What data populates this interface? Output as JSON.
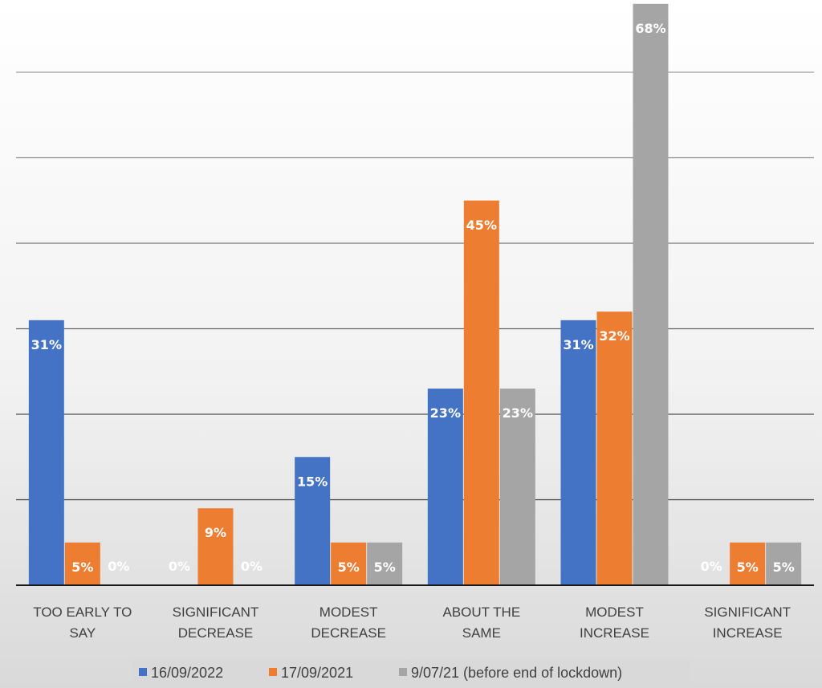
{
  "chart_data": {
    "type": "bar",
    "categories": [
      [
        "TOO EARLY TO",
        "SAY"
      ],
      [
        "SIGNIFICANT",
        "DECREASE"
      ],
      [
        "MODEST",
        "DECREASE"
      ],
      [
        "ABOUT THE",
        "SAME"
      ],
      [
        "MODEST",
        "INCREASE"
      ],
      [
        "SIGNIFICANT",
        "INCREASE"
      ]
    ],
    "series": [
      {
        "name": "16/09/2022",
        "color": "#4472c4",
        "values": [
          31,
          0,
          15,
          23,
          31,
          0
        ]
      },
      {
        "name": "17/09/2021",
        "color": "#ed7d31",
        "values": [
          5,
          9,
          5,
          45,
          32,
          5
        ]
      },
      {
        "name": "9/07/21 (before end of lockdown)",
        "color": "#a5a5a5",
        "values": [
          0,
          0,
          5,
          23,
          68,
          5
        ]
      }
    ],
    "value_suffix": "%",
    "ylim": [
      0,
      70
    ],
    "gridline_step": 10,
    "grid": true,
    "y_tick_labels_shown": false,
    "data_labels": true,
    "legend_position": "bottom"
  }
}
